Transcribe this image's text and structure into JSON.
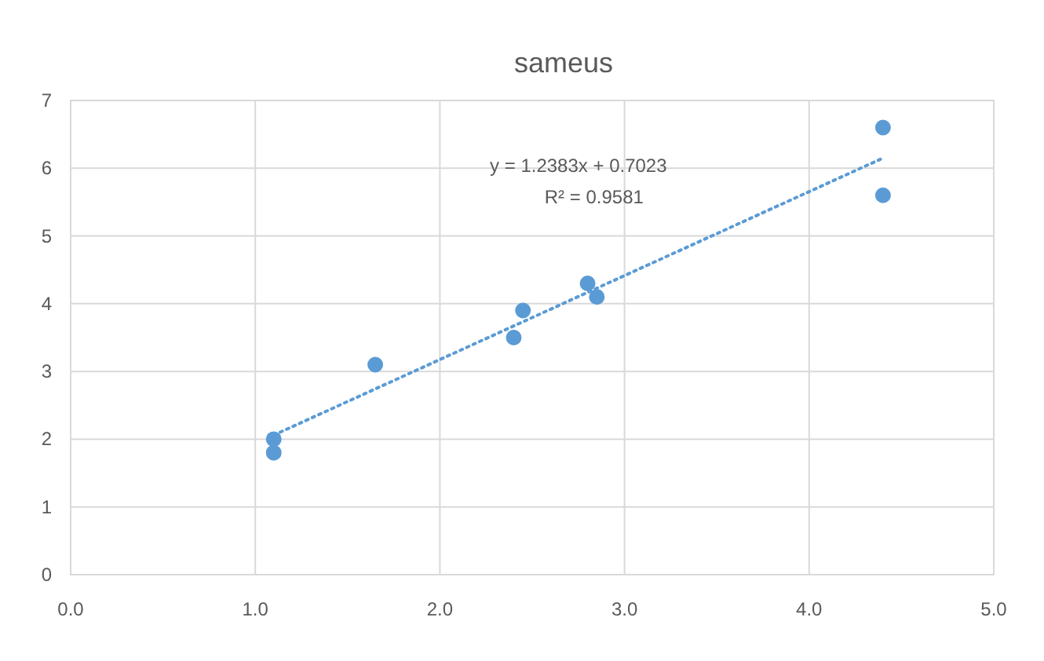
{
  "chart_data": {
    "type": "scatter",
    "title": "sameus",
    "series": [
      {
        "color": "#5b9bd5",
        "marker": "circle",
        "x": [
          1.1,
          1.1,
          1.65,
          2.4,
          2.45,
          2.8,
          2.85,
          4.4,
          4.4
        ],
        "values": [
          2.0,
          1.8,
          3.1,
          3.5,
          3.9,
          4.3,
          4.1,
          6.6,
          5.6
        ]
      },
      {
        "type": "line",
        "color": "#5b9bd5",
        "line_style": "dotted",
        "x": [
          1.1,
          4.4
        ],
        "values": [
          2.06,
          6.15
        ]
      }
    ],
    "xlim": [
      0,
      5
    ],
    "xticks": [
      {
        "value": 0,
        "label": "0.0"
      },
      {
        "value": 1,
        "label": "1.0"
      },
      {
        "value": 2,
        "label": "2.0"
      },
      {
        "value": 3,
        "label": "3.0"
      },
      {
        "value": 4,
        "label": "4.0"
      },
      {
        "value": 5,
        "label": "5.0"
      }
    ],
    "ylim": [
      0,
      7
    ],
    "yticks": [
      0,
      1,
      2,
      3,
      4,
      5,
      6,
      7
    ],
    "grid": true,
    "annotations": [
      "y = 1.2383x + 0.7023",
      "R² = 0.9581"
    ]
  }
}
